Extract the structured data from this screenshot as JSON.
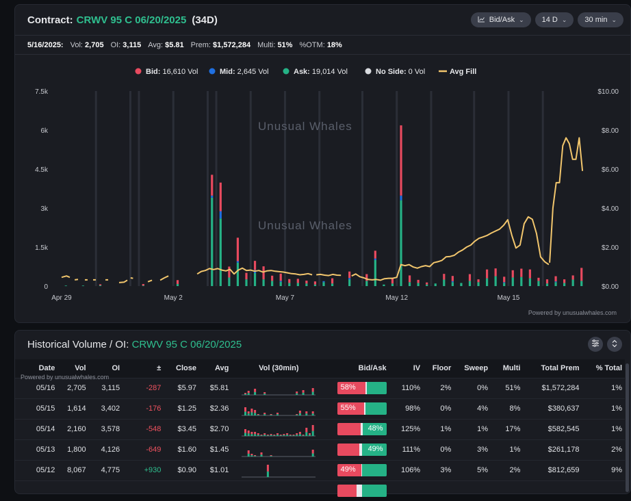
{
  "header": {
    "prefix": "Contract:",
    "contract": "CRWV 95 C 06/20/2025",
    "days": "(34D)",
    "controls": {
      "mode": "Bid/Ask",
      "range": "14 D",
      "interval": "30 min"
    }
  },
  "stats": {
    "date": "5/16/2025:",
    "vol_label": "Vol:",
    "vol": "2,705",
    "oi_label": "OI:",
    "oi": "3,115",
    "avg_label": "Avg:",
    "avg": "$5.81",
    "prem_label": "Prem:",
    "prem": "$1,572,284",
    "multi_label": "Multi:",
    "multi": "51%",
    "otm_label": "%OTM:",
    "otm": "18%"
  },
  "colors": {
    "bid": "#e84a5f",
    "mid": "#1f6fe0",
    "ask": "#25b286",
    "noside": "#d9dbe0",
    "avgfill": "#f2c66d",
    "accent": "#2fbf8f"
  },
  "legend": [
    {
      "key": "bid",
      "name": "Bid:",
      "value": "16,610 Vol"
    },
    {
      "key": "mid",
      "name": "Mid:",
      "value": "2,645 Vol"
    },
    {
      "key": "ask",
      "name": "Ask:",
      "value": "19,014 Vol"
    },
    {
      "key": "noside",
      "name": "No Side:",
      "value": "0 Vol"
    },
    {
      "key": "avgfill",
      "name": "Avg Fill",
      "value": ""
    }
  ],
  "watermark": "Unusual Whales",
  "powered_by": "Powered by unusualwhales.com",
  "chart_data": {
    "type": "bar",
    "title": "",
    "y_left_ticks": [
      "0",
      "1.5k",
      "3k",
      "4.5k",
      "6k",
      "7.5k"
    ],
    "y_right_ticks": [
      "$0.00",
      "$2.00",
      "$4.00",
      "$6.00",
      "$8.00",
      "$10.00"
    ],
    "ylim": [
      0,
      7500
    ],
    "y2lim": [
      0,
      10
    ],
    "x_ticks": [
      {
        "label": "Apr 29",
        "idx": 0
      },
      {
        "label": "May 2",
        "idx": 13
      },
      {
        "label": "May 7",
        "idx": 26
      },
      {
        "label": "May 12",
        "idx": 39
      },
      {
        "label": "May 15",
        "idx": 52
      }
    ],
    "n_slots": 61,
    "day_boundaries": [
      4,
      8,
      9,
      13,
      17,
      18,
      22,
      26,
      30,
      35,
      39,
      43,
      48,
      52,
      56
    ],
    "series": [
      {
        "name": "Bid",
        "points": [
          [
            4,
            40
          ],
          [
            9,
            60
          ],
          [
            13,
            150
          ],
          [
            17,
            800
          ],
          [
            18,
            1100
          ],
          [
            19,
            420
          ],
          [
            20,
            900
          ],
          [
            21,
            250
          ],
          [
            22,
            350
          ],
          [
            23,
            500
          ],
          [
            24,
            200
          ],
          [
            25,
            280
          ],
          [
            26,
            150
          ],
          [
            27,
            160
          ],
          [
            28,
            110
          ],
          [
            29,
            120
          ],
          [
            31,
            200
          ],
          [
            33,
            250
          ],
          [
            35,
            260
          ],
          [
            36,
            300
          ],
          [
            38,
            180
          ],
          [
            39,
            2700
          ],
          [
            40,
            260
          ],
          [
            41,
            120
          ],
          [
            42,
            80
          ],
          [
            44,
            220
          ],
          [
            45,
            200
          ],
          [
            47,
            260
          ],
          [
            48,
            110
          ],
          [
            49,
            340
          ],
          [
            50,
            300
          ],
          [
            51,
            210
          ],
          [
            52,
            280
          ],
          [
            53,
            320
          ],
          [
            54,
            340
          ],
          [
            55,
            120
          ],
          [
            56,
            160
          ],
          [
            57,
            200
          ],
          [
            58,
            140
          ],
          [
            59,
            160
          ],
          [
            60,
            500
          ]
        ]
      },
      {
        "name": "Mid",
        "points": [
          [
            17,
            80
          ],
          [
            18,
            280
          ],
          [
            20,
            60
          ],
          [
            22,
            120
          ],
          [
            25,
            40
          ],
          [
            30,
            40
          ],
          [
            33,
            60
          ],
          [
            36,
            60
          ],
          [
            39,
            180
          ],
          [
            45,
            40
          ],
          [
            51,
            30
          ],
          [
            57,
            30
          ]
        ]
      },
      {
        "name": "Ask",
        "points": [
          [
            0,
            20
          ],
          [
            2,
            20
          ],
          [
            4,
            30
          ],
          [
            9,
            20
          ],
          [
            13,
            80
          ],
          [
            17,
            3400
          ],
          [
            18,
            2600
          ],
          [
            19,
            330
          ],
          [
            20,
            900
          ],
          [
            21,
            260
          ],
          [
            22,
            500
          ],
          [
            23,
            260
          ],
          [
            24,
            200
          ],
          [
            25,
            160
          ],
          [
            26,
            120
          ],
          [
            27,
            120
          ],
          [
            28,
            100
          ],
          [
            29,
            60
          ],
          [
            30,
            150
          ],
          [
            31,
            100
          ],
          [
            33,
            250
          ],
          [
            35,
            200
          ],
          [
            36,
            1000
          ],
          [
            37,
            60
          ],
          [
            38,
            100
          ],
          [
            39,
            3300
          ],
          [
            40,
            150
          ],
          [
            41,
            120
          ],
          [
            42,
            60
          ],
          [
            43,
            100
          ],
          [
            44,
            250
          ],
          [
            45,
            150
          ],
          [
            46,
            120
          ],
          [
            47,
            200
          ],
          [
            48,
            150
          ],
          [
            49,
            300
          ],
          [
            50,
            380
          ],
          [
            51,
            120
          ],
          [
            52,
            330
          ],
          [
            53,
            350
          ],
          [
            54,
            300
          ],
          [
            55,
            200
          ],
          [
            56,
            100
          ],
          [
            57,
            150
          ],
          [
            58,
            120
          ],
          [
            59,
            250
          ],
          [
            60,
            200
          ]
        ]
      }
    ],
    "avg_fill": {
      "name": "Avg Fill",
      "segments": [
        [
          [
            0,
            0.45
          ],
          [
            0.6,
            0.52
          ],
          [
            1,
            0.45
          ]
        ],
        [
          [
            1.6,
            0.32
          ],
          [
            2,
            0.34
          ]
        ],
        [
          [
            3,
            0.32
          ]
        ],
        [
          [
            4,
            0.32
          ]
        ],
        [
          [
            5.5,
            0.32
          ]
        ],
        [
          [
            7,
            0.18
          ],
          [
            7.6,
            0.2
          ],
          [
            8,
            0.3
          ]
        ],
        [
          [
            8.4,
            0.42
          ],
          [
            8.7,
            0.4
          ]
        ],
        [
          [
            10.5,
            0.22
          ],
          [
            11,
            0.3
          ]
        ],
        [
          [
            12,
            0.3
          ],
          [
            12.5,
            0.42
          ],
          [
            13,
            0.52
          ]
        ],
        [
          [
            16.5,
            0.62
          ],
          [
            17,
            0.75
          ],
          [
            17.5,
            0.8
          ],
          [
            18,
            0.9
          ],
          [
            18.5,
            0.85
          ],
          [
            19,
            0.9
          ],
          [
            19.5,
            0.82
          ],
          [
            20,
            0.78
          ],
          [
            20.5,
            0.86
          ],
          [
            21,
            0.62
          ],
          [
            21.5,
            0.82
          ],
          [
            22,
            0.92
          ],
          [
            22.5,
            0.8
          ],
          [
            23,
            0.82
          ],
          [
            23.5,
            0.76
          ],
          [
            24,
            0.8
          ],
          [
            24.5,
            0.72
          ],
          [
            25,
            0.78
          ],
          [
            25.5,
            0.8
          ],
          [
            26,
            0.76
          ],
          [
            26.5,
            0.74
          ],
          [
            27,
            0.72
          ],
          [
            27.5,
            0.68
          ],
          [
            28,
            0.64
          ],
          [
            28.5,
            0.62
          ],
          [
            29,
            0.58
          ],
          [
            29.5,
            0.6
          ],
          [
            30,
            0.64
          ],
          [
            30.5,
            0.58
          ]
        ],
        [
          [
            31,
            0.58
          ],
          [
            31.5,
            0.6
          ],
          [
            32,
            0.56
          ],
          [
            32.5,
            0.54
          ],
          [
            33,
            0.6
          ],
          [
            33.5,
            0.56
          ],
          [
            34,
            0.55
          ]
        ],
        [
          [
            35.3,
            0.52
          ],
          [
            35.8,
            0.62
          ],
          [
            36.3,
            0.48
          ],
          [
            36.8,
            0.42
          ],
          [
            37.3,
            0.34
          ],
          [
            37.8,
            0.32
          ],
          [
            38.3,
            0.34
          ],
          [
            38.8,
            0.3
          ],
          [
            39.3,
            0.38
          ],
          [
            39.8,
            0.4
          ],
          [
            40.3,
            0.4
          ],
          [
            40.8,
            0.45
          ],
          [
            41.3,
            1.1
          ],
          [
            41.8,
            1.05
          ],
          [
            42.3,
            1.1
          ],
          [
            42.8,
            0.98
          ],
          [
            43.3,
            0.92
          ],
          [
            43.8,
            1.0
          ],
          [
            44.3,
            1.05
          ],
          [
            44.8,
            1.0
          ],
          [
            45.3,
            1.2
          ],
          [
            45.8,
            1.25
          ],
          [
            46.3,
            1.32
          ],
          [
            46.8,
            1.5
          ],
          [
            47.3,
            1.52
          ],
          [
            47.8,
            1.58
          ],
          [
            48.3,
            1.74
          ],
          [
            48.8,
            1.85
          ],
          [
            49.3,
            2.0
          ],
          [
            49.8,
            2.1
          ],
          [
            50.3,
            2.3
          ],
          [
            50.8,
            2.45
          ],
          [
            51.3,
            2.52
          ],
          [
            51.8,
            2.6
          ],
          [
            52.3,
            2.72
          ],
          [
            52.8,
            2.82
          ],
          [
            53.3,
            2.92
          ],
          [
            53.8,
            3.12
          ],
          [
            54.3,
            3.4
          ],
          [
            54.8,
            2.6
          ],
          [
            55.3,
            1.95
          ],
          [
            55.8,
            2.1
          ],
          [
            56.3,
            3.2
          ],
          [
            56.8,
            3.55
          ],
          [
            57.3,
            3.42
          ],
          [
            57.8,
            2.7
          ],
          [
            58.3,
            1.5
          ],
          [
            58.8,
            1.25
          ],
          [
            59.3,
            1.1
          ]
        ],
        [
          [
            59.4,
            1.2
          ],
          [
            59.8,
            4.0
          ],
          [
            60.2,
            5.3
          ],
          [
            60.6,
            5.3
          ],
          [
            61,
            7.2
          ],
          [
            61.4,
            7.6
          ],
          [
            61.8,
            7.3
          ],
          [
            62.2,
            6.5
          ],
          [
            62.6,
            6.5
          ],
          [
            63,
            7.6
          ],
          [
            63.4,
            5.9
          ]
        ]
      ]
    }
  },
  "table": {
    "title_prefix": "Historical Volume / OI:",
    "title_contract": "CRWV 95 C 06/20/2025",
    "powered_by": "Powered by unusualwhales.com",
    "columns": [
      "Date",
      "Vol",
      "OI",
      "±",
      "Close",
      "Avg",
      "Vol (30min)",
      "Bid/Ask",
      "IV",
      "Floor",
      "Sweep",
      "Multi",
      "Total Prem",
      "% Total"
    ],
    "rows": [
      {
        "date": "05/16",
        "vol": "2,705",
        "oi": "3,115",
        "chg": "-287",
        "close": "$5.97",
        "avg": "$5.81",
        "bid": 58,
        "mid": 2,
        "ask": 40,
        "ba_label": "58%",
        "ba_side": "bid",
        "iv": "110%",
        "floor": "2%",
        "sweep": "0%",
        "multi": "51%",
        "prem": "$1,572,284",
        "pct": "1%",
        "spark": [
          0.15,
          0.3,
          0,
          0.45,
          0,
          0,
          0.2,
          0,
          0,
          0,
          0,
          0,
          0,
          0,
          0,
          0,
          0.25,
          0,
          0.35,
          0,
          0,
          0.5
        ]
      },
      {
        "date": "05/15",
        "vol": "1,614",
        "oi": "3,402",
        "chg": "-176",
        "close": "$1.25",
        "avg": "$2.36",
        "bid": 55,
        "mid": 3,
        "ask": 42,
        "ba_label": "55%",
        "ba_side": "bid",
        "iv": "98%",
        "floor": "0%",
        "sweep": "4%",
        "multi": "8%",
        "prem": "$380,637",
        "pct": "1%",
        "spark": [
          0.6,
          0.3,
          0.5,
          0.4,
          0.1,
          0,
          0.2,
          0,
          0.1,
          0,
          0.2,
          0,
          0,
          0,
          0,
          0,
          0.1,
          0.35,
          0,
          0.3,
          0,
          0.3
        ]
      },
      {
        "date": "05/14",
        "vol": "2,160",
        "oi": "3,578",
        "chg": "-548",
        "close": "$3.45",
        "avg": "$2.70",
        "bid": 48,
        "mid": 4,
        "ask": 48,
        "ba_label": "48%",
        "ba_side": "ask",
        "iv": "125%",
        "floor": "1%",
        "sweep": "1%",
        "multi": "17%",
        "prem": "$582,545",
        "pct": "1%",
        "spark": [
          0.5,
          0.4,
          0.3,
          0.3,
          0.2,
          0.1,
          0.2,
          0.1,
          0.15,
          0.1,
          0.2,
          0.1,
          0.15,
          0.2,
          0.1,
          0.1,
          0.2,
          0.3,
          0.1,
          0.6,
          0.2,
          0.8
        ]
      },
      {
        "date": "05/13",
        "vol": "1,800",
        "oi": "4,126",
        "chg": "-649",
        "close": "$1.60",
        "avg": "$1.45",
        "bid": 45,
        "mid": 6,
        "ask": 49,
        "ba_label": "49%",
        "ba_side": "ask",
        "iv": "111%",
        "floor": "0%",
        "sweep": "3%",
        "multi": "1%",
        "prem": "$261,178",
        "pct": "2%",
        "spark": [
          0,
          0.45,
          0.2,
          0.1,
          0,
          0.3,
          0,
          0,
          0.1,
          0,
          0,
          0,
          0,
          0,
          0,
          0,
          0,
          0,
          0,
          0,
          0,
          0.5
        ]
      },
      {
        "date": "05/12",
        "vol": "8,067",
        "oi": "4,775",
        "chg": "+930",
        "close": "$0.90",
        "avg": "$1.01",
        "bid": 49,
        "mid": 2,
        "ask": 49,
        "ba_label": "49%",
        "ba_side": "bid",
        "iv": "106%",
        "floor": "3%",
        "sweep": "5%",
        "multi": "2%",
        "prem": "$812,659",
        "pct": "9%",
        "spark": [
          0,
          0,
          0,
          0,
          0,
          0,
          0,
          0.9,
          0,
          0,
          0,
          0,
          0,
          0,
          0,
          0,
          0,
          0,
          0,
          0,
          0,
          0
        ]
      },
      {
        "date": "",
        "vol": "",
        "oi": "",
        "chg": "",
        "close": "",
        "avg": "",
        "bid": 40,
        "mid": 10,
        "ask": 50,
        "ba_label": "",
        "ba_side": "bid",
        "iv": "",
        "floor": "",
        "sweep": "",
        "multi": "",
        "prem": "",
        "pct": "",
        "spark": []
      }
    ]
  }
}
